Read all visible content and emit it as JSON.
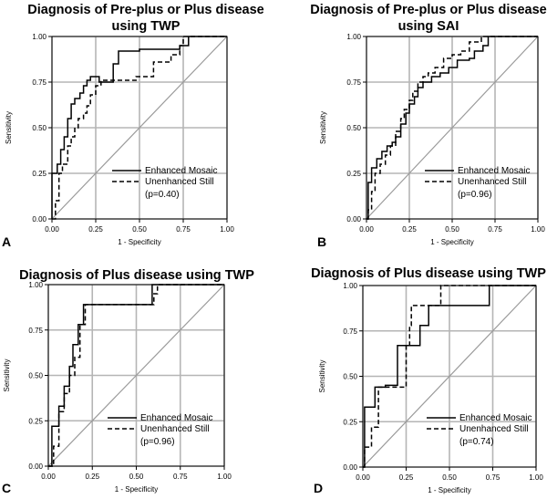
{
  "chart_data": [
    {
      "type": "line",
      "panel_label": "A",
      "title_lines": [
        "Diagnosis of Pre-plus or Plus disease",
        "using TWP"
      ],
      "xlabel": "1 - Specificity",
      "ylabel": "Sensitivity",
      "xlim": [
        0,
        1
      ],
      "ylim": [
        0,
        1
      ],
      "xticks": [
        "0.00",
        "0.25",
        "0.50",
        "0.75",
        "1.00"
      ],
      "yticks": [
        "0.00",
        "0.25",
        "0.50",
        "0.75",
        "1.00"
      ],
      "grid": true,
      "legend_position": "bottom-right",
      "p_value": "(p=0.40)",
      "series": [
        {
          "name": "Enhanced Mosaic",
          "style": "solid",
          "x": [
            0,
            0,
            0.03,
            0.03,
            0.05,
            0.05,
            0.07,
            0.07,
            0.09,
            0.09,
            0.11,
            0.11,
            0.13,
            0.13,
            0.16,
            0.16,
            0.18,
            0.18,
            0.2,
            0.2,
            0.22,
            0.22,
            0.27,
            0.27,
            0.35,
            0.35,
            0.38,
            0.38,
            0.5,
            0.5,
            0.73,
            0.73,
            0.78,
            0.78,
            1.0
          ],
          "y": [
            0,
            0.25,
            0.25,
            0.3,
            0.3,
            0.38,
            0.38,
            0.45,
            0.45,
            0.55,
            0.55,
            0.63,
            0.63,
            0.66,
            0.66,
            0.69,
            0.69,
            0.73,
            0.73,
            0.76,
            0.76,
            0.78,
            0.78,
            0.75,
            0.75,
            0.85,
            0.85,
            0.92,
            0.92,
            0.93,
            0.93,
            0.95,
            0.95,
            1.0,
            1.0
          ]
        },
        {
          "name": "Unenhanced Still",
          "style": "dashed",
          "x": [
            0,
            0.02,
            0.02,
            0.04,
            0.04,
            0.06,
            0.06,
            0.09,
            0.09,
            0.11,
            0.11,
            0.13,
            0.13,
            0.15,
            0.15,
            0.18,
            0.18,
            0.2,
            0.2,
            0.22,
            0.22,
            0.25,
            0.25,
            0.28,
            0.28,
            0.48,
            0.48,
            0.58,
            0.58,
            0.68,
            0.68,
            0.73,
            0.73,
            0.75,
            0.75,
            1.0
          ],
          "y": [
            0,
            0,
            0.1,
            0.1,
            0.25,
            0.25,
            0.3,
            0.3,
            0.4,
            0.4,
            0.45,
            0.45,
            0.5,
            0.5,
            0.55,
            0.55,
            0.58,
            0.58,
            0.62,
            0.62,
            0.68,
            0.68,
            0.73,
            0.73,
            0.76,
            0.76,
            0.78,
            0.78,
            0.86,
            0.86,
            0.9,
            0.9,
            0.95,
            0.95,
            1.0,
            1.0
          ]
        }
      ]
    },
    {
      "type": "line",
      "panel_label": "B",
      "title_lines": [
        "Diagnosis of Pre-plus or Plus disease",
        "using SAI"
      ],
      "xlabel": "1 - Specificity",
      "ylabel": "Sensitivity",
      "xlim": [
        0,
        1
      ],
      "ylim": [
        0,
        1
      ],
      "xticks": [
        "0.00",
        "0.25",
        "0.50",
        "0.75",
        "1.00"
      ],
      "yticks": [
        "0.00",
        "0.25",
        "0.50",
        "0.75",
        "1.00"
      ],
      "grid": true,
      "legend_position": "bottom-right",
      "p_value": "(p=0.96)",
      "series": [
        {
          "name": "Enhanced Mosaic",
          "style": "solid",
          "x": [
            0,
            0.01,
            0.01,
            0.03,
            0.03,
            0.06,
            0.06,
            0.09,
            0.09,
            0.12,
            0.12,
            0.15,
            0.15,
            0.17,
            0.17,
            0.2,
            0.2,
            0.23,
            0.23,
            0.25,
            0.25,
            0.28,
            0.28,
            0.3,
            0.3,
            0.33,
            0.33,
            0.38,
            0.38,
            0.43,
            0.43,
            0.48,
            0.48,
            0.53,
            0.53,
            0.6,
            0.6,
            0.63,
            0.63,
            0.68,
            0.68,
            0.71,
            0.71,
            1.0
          ],
          "y": [
            0,
            0,
            0.2,
            0.2,
            0.28,
            0.28,
            0.33,
            0.33,
            0.37,
            0.37,
            0.4,
            0.4,
            0.42,
            0.42,
            0.45,
            0.45,
            0.52,
            0.52,
            0.58,
            0.58,
            0.63,
            0.63,
            0.67,
            0.67,
            0.72,
            0.72,
            0.75,
            0.75,
            0.78,
            0.78,
            0.8,
            0.8,
            0.83,
            0.83,
            0.87,
            0.87,
            0.88,
            0.88,
            0.92,
            0.92,
            0.95,
            0.95,
            1.0,
            1.0
          ]
        },
        {
          "name": "Unenhanced Still",
          "style": "dashed",
          "x": [
            0,
            0.01,
            0.01,
            0.03,
            0.03,
            0.05,
            0.05,
            0.08,
            0.08,
            0.11,
            0.11,
            0.14,
            0.14,
            0.17,
            0.17,
            0.2,
            0.2,
            0.22,
            0.22,
            0.25,
            0.25,
            0.27,
            0.27,
            0.3,
            0.3,
            0.33,
            0.33,
            0.36,
            0.36,
            0.4,
            0.4,
            0.45,
            0.45,
            0.5,
            0.5,
            0.55,
            0.55,
            0.6,
            0.6,
            0.67,
            0.67,
            0.72,
            0.72,
            1.0
          ],
          "y": [
            0,
            0,
            0.05,
            0.05,
            0.15,
            0.15,
            0.25,
            0.25,
            0.3,
            0.3,
            0.35,
            0.35,
            0.4,
            0.4,
            0.48,
            0.48,
            0.55,
            0.55,
            0.6,
            0.6,
            0.65,
            0.65,
            0.7,
            0.7,
            0.75,
            0.75,
            0.78,
            0.78,
            0.8,
            0.8,
            0.83,
            0.83,
            0.88,
            0.88,
            0.9,
            0.9,
            0.92,
            0.92,
            0.97,
            0.97,
            1.0,
            1.0,
            1.0,
            1.0
          ]
        }
      ]
    },
    {
      "type": "line",
      "panel_label": "C",
      "title_lines": [
        "Diagnosis of Plus disease using TWP"
      ],
      "xlabel": "1 - Specificity",
      "ylabel": "Sensitivity",
      "xlim": [
        0,
        1
      ],
      "ylim": [
        0,
        1
      ],
      "xticks": [
        "0.00",
        "0.25",
        "0.50",
        "0.75",
        "1.00"
      ],
      "yticks": [
        "0.00",
        "0.25",
        "0.50",
        "0.75",
        "1.00"
      ],
      "grid": true,
      "legend_position": "bottom-right",
      "p_value": "(p=0.96)",
      "series": [
        {
          "name": "Enhanced Mosaic",
          "style": "solid",
          "x": [
            0,
            0.02,
            0.02,
            0.06,
            0.06,
            0.09,
            0.09,
            0.12,
            0.12,
            0.14,
            0.14,
            0.17,
            0.17,
            0.2,
            0.2,
            0.23,
            0.23,
            0.59,
            0.59,
            1.0
          ],
          "y": [
            0,
            0,
            0.22,
            0.22,
            0.33,
            0.33,
            0.44,
            0.44,
            0.55,
            0.55,
            0.67,
            0.67,
            0.78,
            0.78,
            0.89,
            0.89,
            0.89,
            0.89,
            1.0,
            1.0
          ]
        },
        {
          "name": "Unenhanced Still",
          "style": "dashed",
          "x": [
            0,
            0.03,
            0.03,
            0.06,
            0.06,
            0.09,
            0.09,
            0.12,
            0.12,
            0.15,
            0.15,
            0.18,
            0.18,
            0.21,
            0.21,
            0.24,
            0.24,
            0.6,
            0.6,
            0.62,
            0.62,
            1.0
          ],
          "y": [
            0,
            0,
            0.11,
            0.11,
            0.3,
            0.3,
            0.4,
            0.4,
            0.5,
            0.5,
            0.6,
            0.6,
            0.78,
            0.78,
            0.89,
            0.89,
            0.89,
            0.89,
            0.95,
            0.95,
            1.0,
            1.0
          ]
        }
      ]
    },
    {
      "type": "line",
      "panel_label": "D",
      "title_lines": [
        "Diagnosis of Plus disease using TWP"
      ],
      "xlabel": "1 - Specificity",
      "ylabel": "Sensitivity",
      "xlim": [
        0,
        1
      ],
      "ylim": [
        0,
        1
      ],
      "xticks": [
        "0.00",
        "0.25",
        "0.50",
        "0.75",
        "1.00"
      ],
      "yticks": [
        "0.00",
        "0.25",
        "0.50",
        "0.75",
        "1.00"
      ],
      "grid": true,
      "legend_position": "bottom-right",
      "p_value": "(p=0.74)",
      "series": [
        {
          "name": "Enhanced Mosaic",
          "style": "solid",
          "x": [
            0,
            0.01,
            0.01,
            0.07,
            0.07,
            0.13,
            0.13,
            0.2,
            0.2,
            0.33,
            0.33,
            0.38,
            0.38,
            0.73,
            0.73,
            1.0
          ],
          "y": [
            0,
            0,
            0.33,
            0.33,
            0.44,
            0.44,
            0.45,
            0.45,
            0.67,
            0.67,
            0.78,
            0.78,
            0.89,
            0.89,
            1.0,
            1.0
          ]
        },
        {
          "name": "Unenhanced Still",
          "style": "dashed",
          "x": [
            0,
            0.01,
            0.01,
            0.05,
            0.05,
            0.09,
            0.09,
            0.25,
            0.25,
            0.27,
            0.27,
            0.28,
            0.28,
            0.45,
            0.45,
            0.5,
            0.5,
            1.0
          ],
          "y": [
            0,
            0,
            0.11,
            0.11,
            0.22,
            0.22,
            0.44,
            0.44,
            0.67,
            0.67,
            0.78,
            0.78,
            0.89,
            0.89,
            1.0,
            1.0,
            1.0,
            1.0
          ]
        }
      ]
    }
  ]
}
